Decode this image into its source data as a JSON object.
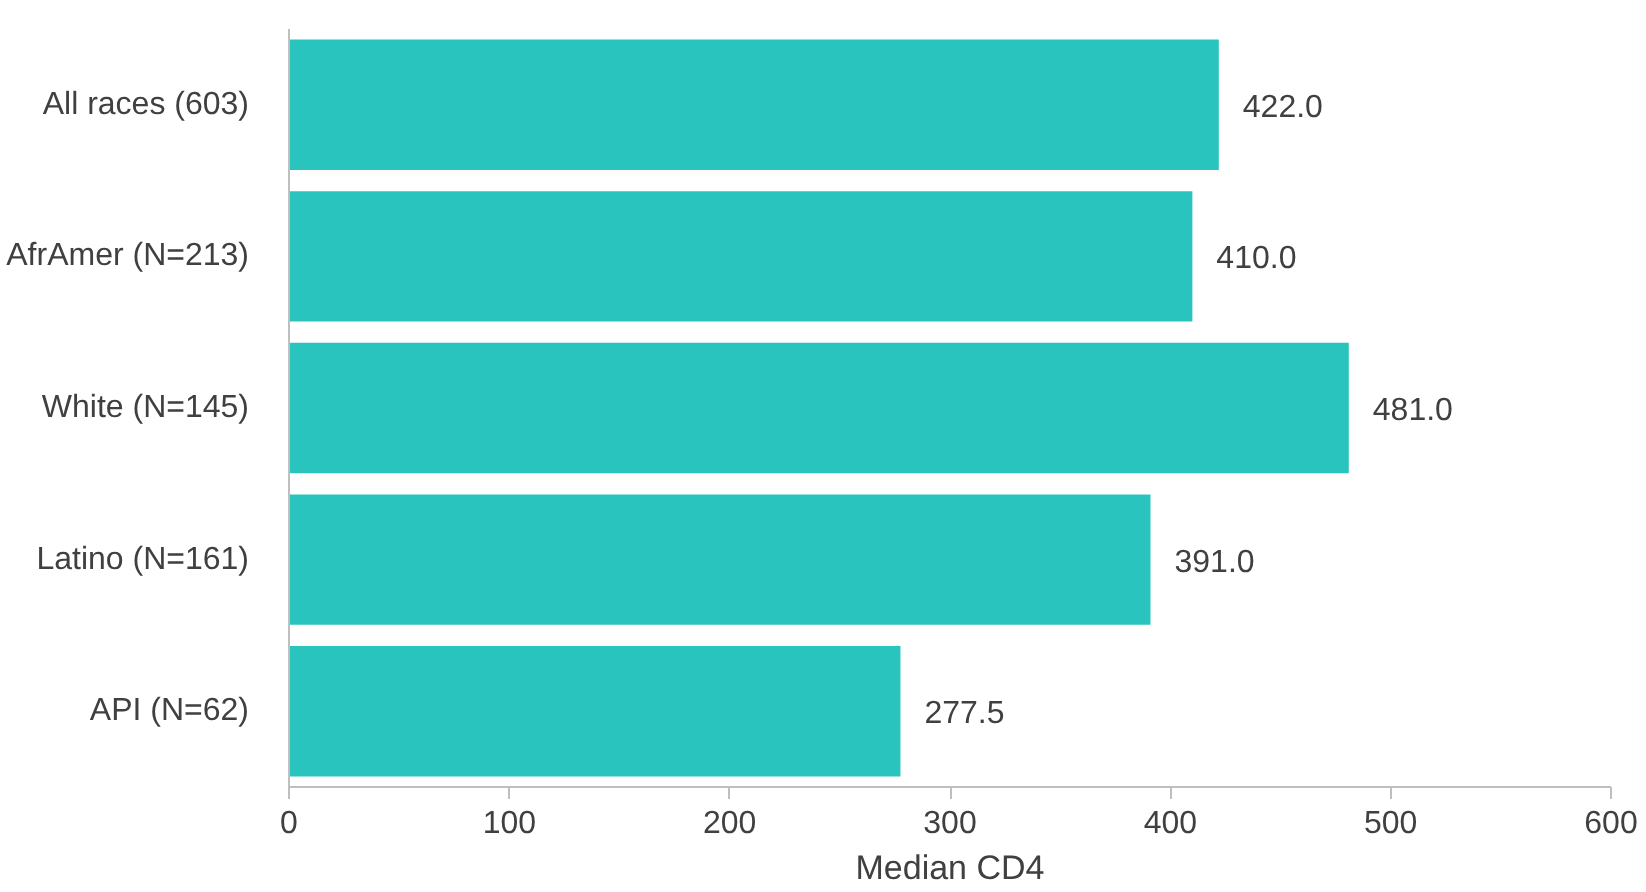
{
  "chart_data": {
    "type": "bar",
    "orientation": "horizontal",
    "xlabel": "Median CD4",
    "categories": [
      "All races (603)",
      "AfrAmer (N=213)",
      "White (N=145)",
      "Latino (N=161)",
      "API (N=62)"
    ],
    "values": [
      422.0,
      410.0,
      481.0,
      391.0,
      277.5
    ],
    "value_labels": [
      "422.0",
      "410.0",
      "481.0",
      "391.0",
      "277.5"
    ],
    "color": "#2ac4be",
    "xlim": [
      0,
      600
    ],
    "xticks": [
      0,
      100,
      200,
      300,
      400,
      500,
      600
    ],
    "grid": false
  }
}
